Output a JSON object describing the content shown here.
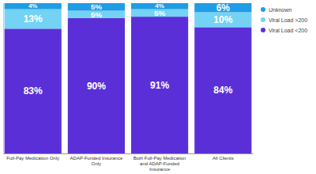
{
  "chart_data": {
    "type": "bar",
    "stacked": true,
    "categories": [
      "Full-Pay Medication Only",
      "ADAP-Funded Insurance Only",
      "Both Full-Pay Medication and ADAP-Funded Insurance",
      "All Clients"
    ],
    "series": [
      {
        "name": "Viral Load <200",
        "color": "#5b2fd8",
        "values": [
          83,
          90,
          91,
          84
        ],
        "value_labels": [
          "83%",
          "90%",
          "91%",
          "84%"
        ]
      },
      {
        "name": "Viral Load >200",
        "color": "#74d2f4",
        "values": [
          13,
          5,
          5,
          10
        ],
        "value_labels": [
          "13%",
          "5%",
          "5%",
          "10%"
        ]
      },
      {
        "name": "Unknown",
        "color": "#1e9ce6",
        "values": [
          4,
          5,
          4,
          6
        ],
        "value_labels": [
          "4%",
          "5%",
          "4%",
          "6%"
        ]
      }
    ],
    "ylim": [
      0,
      100
    ],
    "data_labels": true,
    "legend": "upper right",
    "tick_labels": "x"
  }
}
